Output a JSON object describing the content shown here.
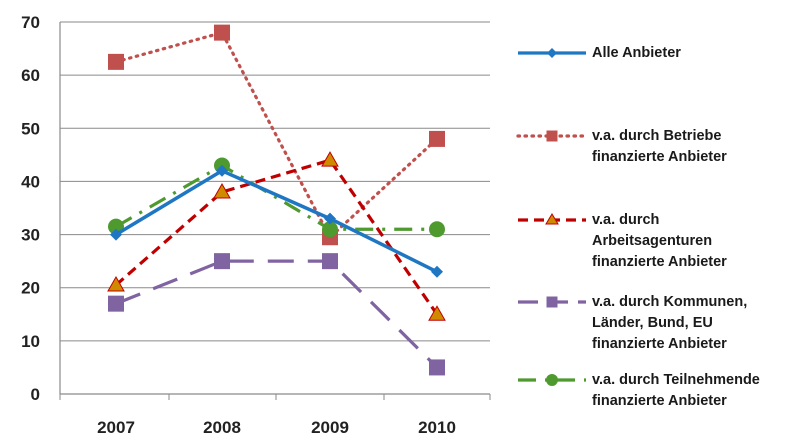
{
  "chart_data": {
    "type": "line",
    "x": [
      "2007",
      "2008",
      "2009",
      "2010"
    ],
    "ylim": [
      0,
      70
    ],
    "yticks": [
      0,
      10,
      20,
      30,
      40,
      50,
      60,
      70
    ],
    "grid": "horizontal",
    "legend_position": "right",
    "series": [
      {
        "name": "Alle Anbieter",
        "values": [
          30,
          42,
          33,
          23
        ],
        "color": "#1f77c4",
        "dash": "solid",
        "marker": "diamond"
      },
      {
        "name": "v.a. durch Betriebe\nfinanzierte Anbieter",
        "values": [
          62.5,
          68,
          29.5,
          48
        ],
        "color": "#c0504d",
        "dash": "dotted",
        "marker": "square"
      },
      {
        "name": "v.a. durch\nArbeitsagenturen\nfinanzierte Anbieter",
        "values": [
          20.5,
          38,
          44,
          15
        ],
        "color": "#c00000",
        "dash": "dashed",
        "marker": "triangle",
        "marker_color": "#d08a00"
      },
      {
        "name": "v.a. durch Kommunen,\nLänder, Bund, EU\nfinanzierte Anbieter",
        "values": [
          17,
          25,
          25,
          5
        ],
        "color": "#8064a2",
        "dash": "longdash",
        "marker": "square"
      },
      {
        "name": "v.a. durch Teilnehmende\nfinanzierte Anbieter",
        "values": [
          31.5,
          43,
          31,
          31
        ],
        "color": "#4e9a2e",
        "dash": "dashdot",
        "marker": "circle"
      }
    ]
  }
}
